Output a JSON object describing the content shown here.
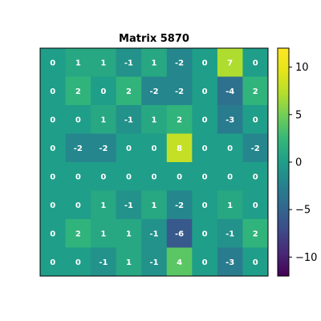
{
  "chart_data": {
    "type": "heatmap",
    "title": "Matrix 5870",
    "values": [
      [
        0,
        1,
        1,
        -1,
        1,
        -2,
        0,
        7,
        0
      ],
      [
        0,
        2,
        0,
        2,
        -2,
        -2,
        0,
        -4,
        2
      ],
      [
        0,
        0,
        1,
        -1,
        1,
        2,
        0,
        -3,
        0
      ],
      [
        0,
        -2,
        -2,
        0,
        0,
        8,
        0,
        0,
        -2
      ],
      [
        0,
        0,
        0,
        0,
        0,
        0,
        0,
        0,
        0
      ],
      [
        0,
        0,
        1,
        -1,
        1,
        -2,
        0,
        1,
        0
      ],
      [
        0,
        2,
        1,
        1,
        -1,
        -6,
        0,
        -1,
        2
      ],
      [
        0,
        0,
        -1,
        1,
        -1,
        4,
        0,
        -3,
        0
      ]
    ],
    "colormap": "viridis",
    "vmin": -12,
    "vmax": 12,
    "colorbar_ticks": [
      -10,
      -5,
      0,
      5,
      10
    ],
    "colorbar_tick_labels": [
      "−10",
      "−5",
      "0",
      "5",
      "10"
    ],
    "show_axes_ticks": false
  }
}
